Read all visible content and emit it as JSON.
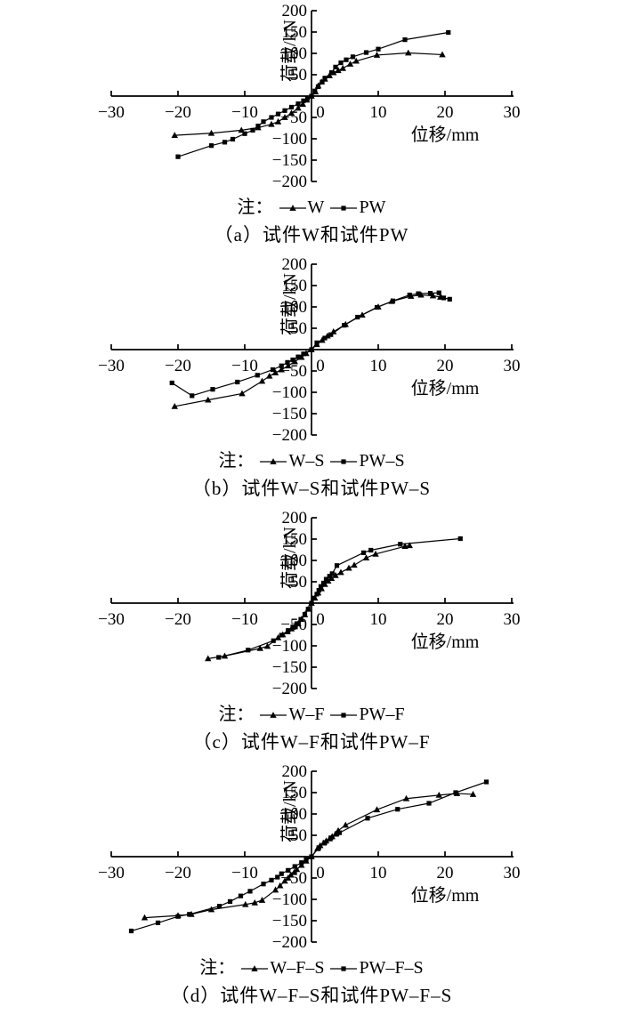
{
  "page": {
    "background": "#ffffff",
    "ink": "#000000"
  },
  "chart_data": [
    {
      "id": "a",
      "type": "line",
      "title": "（a）试件W和试件PW",
      "caption": "（a）试件W和试件PW",
      "legend_prefix": "注：",
      "xlabel": "位移/mm",
      "ylabel": "荷载/kN",
      "xlim": [
        -30,
        30
      ],
      "ylim": [
        -200,
        200
      ],
      "xticks": [
        -30,
        -20,
        -10,
        0,
        10,
        20,
        30
      ],
      "yticks": [
        -200,
        -150,
        -100,
        -50,
        50,
        100,
        150,
        200
      ],
      "grid": false,
      "legend_position": "bottom",
      "series": [
        {
          "name": "W",
          "marker": "triangle",
          "points": [
            [
              -20.5,
              -92
            ],
            [
              -15,
              -87
            ],
            [
              -10.5,
              -80
            ],
            [
              -8,
              -74
            ],
            [
              -6,
              -66
            ],
            [
              -5,
              -60
            ],
            [
              -4,
              -50
            ],
            [
              -3,
              -40
            ],
            [
              -2,
              -28
            ],
            [
              -1.3,
              -19
            ],
            [
              -0.7,
              -9
            ],
            [
              0,
              0
            ],
            [
              0.6,
              10
            ],
            [
              1,
              24
            ],
            [
              1.5,
              33
            ],
            [
              2,
              40
            ],
            [
              2.7,
              48
            ],
            [
              3.3,
              55
            ],
            [
              4,
              60
            ],
            [
              4.7,
              65
            ],
            [
              5.8,
              75
            ],
            [
              6.7,
              82
            ],
            [
              9.8,
              96
            ],
            [
              14.5,
              101
            ],
            [
              19.6,
              97
            ]
          ]
        },
        {
          "name": "PW",
          "marker": "square",
          "points": [
            [
              -20,
              -142
            ],
            [
              -15,
              -116
            ],
            [
              -13,
              -108
            ],
            [
              -11.8,
              -101
            ],
            [
              -10,
              -88
            ],
            [
              -8.8,
              -80
            ],
            [
              -8,
              -70
            ],
            [
              -7.2,
              -60
            ],
            [
              -6,
              -50
            ],
            [
              -5,
              -42
            ],
            [
              -4,
              -34
            ],
            [
              -3,
              -26
            ],
            [
              -2,
              -18
            ],
            [
              -1.2,
              -11
            ],
            [
              -0.6,
              -5
            ],
            [
              0,
              0
            ],
            [
              0.5,
              12
            ],
            [
              1,
              22
            ],
            [
              1.6,
              33
            ],
            [
              2,
              42
            ],
            [
              3,
              55
            ],
            [
              3.6,
              68
            ],
            [
              4.4,
              78
            ],
            [
              5.2,
              85
            ],
            [
              6.2,
              92
            ],
            [
              8.2,
              102
            ],
            [
              10,
              110
            ],
            [
              14,
              132
            ],
            [
              20.5,
              149
            ]
          ]
        }
      ]
    },
    {
      "id": "b",
      "type": "line",
      "title": "（b）试件W–S和试件PW–S",
      "caption": "（b）试件W–S和试件PW–S",
      "legend_prefix": "注：",
      "xlabel": "位移/mm",
      "ylabel": "荷载/kN",
      "xlim": [
        -30,
        30
      ],
      "ylim": [
        -200,
        200
      ],
      "xticks": [
        -30,
        -20,
        -10,
        0,
        10,
        20,
        30
      ],
      "yticks": [
        -200,
        -150,
        -100,
        -50,
        50,
        100,
        150,
        200
      ],
      "grid": false,
      "legend_position": "bottom",
      "series": [
        {
          "name": "W–S",
          "marker": "triangle",
          "points": [
            [
              -20.5,
              -133
            ],
            [
              -15.5,
              -118
            ],
            [
              -10.4,
              -103
            ],
            [
              -7.4,
              -74
            ],
            [
              -6.3,
              -62
            ],
            [
              -5.4,
              -54
            ],
            [
              -4.5,
              -47
            ],
            [
              -3.5,
              -38
            ],
            [
              -2.5,
              -28
            ],
            [
              -1.5,
              -18
            ],
            [
              -0.8,
              -9
            ],
            [
              0,
              0
            ],
            [
              0.8,
              12
            ],
            [
              1.6,
              22
            ],
            [
              2.4,
              32
            ],
            [
              3.3,
              42
            ],
            [
              5.1,
              59
            ],
            [
              7.6,
              81
            ],
            [
              10,
              100
            ],
            [
              12,
              113
            ],
            [
              14.9,
              125
            ],
            [
              16.4,
              128
            ],
            [
              18.2,
              126
            ],
            [
              19.3,
              123
            ]
          ]
        },
        {
          "name": "PW–S",
          "marker": "square",
          "points": [
            [
              -20.9,
              -78
            ],
            [
              -17.9,
              -108
            ],
            [
              -14.8,
              -93
            ],
            [
              -11.1,
              -76
            ],
            [
              -8.1,
              -60
            ],
            [
              -5.8,
              -47
            ],
            [
              -4.5,
              -38
            ],
            [
              -3.6,
              -30
            ],
            [
              -2.8,
              -24
            ],
            [
              -2,
              -17
            ],
            [
              -1.2,
              -10
            ],
            [
              0,
              0
            ],
            [
              0.8,
              16
            ],
            [
              2,
              27
            ],
            [
              2.9,
              35
            ],
            [
              4.9,
              57
            ],
            [
              6.9,
              76
            ],
            [
              9.8,
              99
            ],
            [
              12.2,
              114
            ],
            [
              14.7,
              128
            ],
            [
              16,
              131
            ],
            [
              17.8,
              132
            ],
            [
              19.1,
              133
            ],
            [
              19.8,
              121
            ],
            [
              20.7,
              118
            ]
          ]
        }
      ]
    },
    {
      "id": "c",
      "type": "line",
      "title": "（c）试件W–F和试件PW–F",
      "caption": "（c）试件W–F和试件PW–F",
      "legend_prefix": "注：",
      "xlabel": "位移/mm",
      "ylabel": "荷载/kN",
      "xlim": [
        -30,
        30
      ],
      "ylim": [
        -200,
        200
      ],
      "xticks": [
        -30,
        -20,
        -10,
        0,
        10,
        20,
        30
      ],
      "yticks": [
        -200,
        -150,
        -100,
        -50,
        50,
        100,
        150,
        200
      ],
      "grid": false,
      "legend_position": "bottom",
      "series": [
        {
          "name": "W–F",
          "marker": "triangle",
          "points": [
            [
              -15.5,
              -130
            ],
            [
              -13,
              -124
            ],
            [
              -7.7,
              -106
            ],
            [
              -6.6,
              -101
            ],
            [
              -5,
              -81
            ],
            [
              -4.3,
              -74
            ],
            [
              -3.6,
              -67
            ],
            [
              -3,
              -60
            ],
            [
              -2.5,
              -55
            ],
            [
              -2,
              -48
            ],
            [
              -1.5,
              -38
            ],
            [
              -1,
              -27
            ],
            [
              -0.5,
              -14
            ],
            [
              0,
              0
            ],
            [
              0.5,
              12
            ],
            [
              1,
              24
            ],
            [
              1.5,
              34
            ],
            [
              2,
              44
            ],
            [
              2.5,
              52
            ],
            [
              3,
              58
            ],
            [
              3.6,
              65
            ],
            [
              4.4,
              72
            ],
            [
              5.6,
              82
            ],
            [
              6.4,
              89
            ],
            [
              8.2,
              106
            ],
            [
              9.6,
              115
            ],
            [
              14,
              133
            ],
            [
              14.7,
              135
            ]
          ]
        },
        {
          "name": "PW–F",
          "marker": "square",
          "points": [
            [
              -13.9,
              -127
            ],
            [
              -9.5,
              -110
            ],
            [
              -5.7,
              -88
            ],
            [
              -4.5,
              -75
            ],
            [
              -3.5,
              -64
            ],
            [
              -2.8,
              -56
            ],
            [
              -2.2,
              -48
            ],
            [
              -1.6,
              -38
            ],
            [
              -1,
              -26
            ],
            [
              -0.5,
              -14
            ],
            [
              0,
              0
            ],
            [
              0.4,
              12
            ],
            [
              0.8,
              21
            ],
            [
              1.1,
              30
            ],
            [
              1.4,
              39
            ],
            [
              1.8,
              47
            ],
            [
              2.2,
              56
            ],
            [
              2.7,
              63
            ],
            [
              3.1,
              69
            ],
            [
              3.8,
              88
            ],
            [
              7.8,
              118
            ],
            [
              8.9,
              124
            ],
            [
              13.3,
              138
            ],
            [
              22.3,
              151
            ]
          ]
        }
      ]
    },
    {
      "id": "d",
      "type": "line",
      "title": "（d）试件W–F–S和试件PW–F–S",
      "caption": "（d）试件W–F–S和试件PW–F–S",
      "legend_prefix": "注：",
      "xlabel": "位移/mm",
      "ylabel": "荷载/kN",
      "xlim": [
        -30,
        30
      ],
      "ylim": [
        -200,
        200
      ],
      "xticks": [
        -30,
        -20,
        -10,
        0,
        10,
        20,
        30
      ],
      "yticks": [
        -200,
        -150,
        -100,
        -50,
        50,
        100,
        150,
        200
      ],
      "grid": false,
      "legend_position": "bottom",
      "series": [
        {
          "name": "W–F–S",
          "marker": "triangle",
          "points": [
            [
              -25,
              -143
            ],
            [
              -20,
              -138
            ],
            [
              -18,
              -135
            ],
            [
              -15,
              -124
            ],
            [
              -9.9,
              -112
            ],
            [
              -8.5,
              -108
            ],
            [
              -7.4,
              -102
            ],
            [
              -5.4,
              -78
            ],
            [
              -4.7,
              -68
            ],
            [
              -4,
              -57
            ],
            [
              -3.5,
              -50
            ],
            [
              -3.1,
              -43
            ],
            [
              -2.6,
              -37
            ],
            [
              -2.2,
              -30
            ],
            [
              -1.5,
              -20
            ],
            [
              -0.8,
              -10
            ],
            [
              0,
              0
            ],
            [
              0.9,
              19
            ],
            [
              1.3,
              26
            ],
            [
              1.8,
              32
            ],
            [
              2.2,
              37
            ],
            [
              2.7,
              42
            ],
            [
              3.1,
              47
            ],
            [
              3.6,
              53
            ],
            [
              4,
              61
            ],
            [
              5.1,
              74
            ],
            [
              9.8,
              110
            ],
            [
              14.2,
              136
            ],
            [
              19.1,
              144
            ],
            [
              21.8,
              148
            ],
            [
              24.2,
              146
            ]
          ]
        },
        {
          "name": "PW–F–S",
          "marker": "square",
          "points": [
            [
              -27,
              -174
            ],
            [
              -23,
              -155
            ],
            [
              -20,
              -140
            ],
            [
              -18.3,
              -135
            ],
            [
              -13.8,
              -116
            ],
            [
              -12.2,
              -105
            ],
            [
              -10.6,
              -92
            ],
            [
              -9.2,
              -81
            ],
            [
              -7.2,
              -64
            ],
            [
              -6,
              -55
            ],
            [
              -5.1,
              -48
            ],
            [
              -4.5,
              -40
            ],
            [
              -3.5,
              -32
            ],
            [
              -2.5,
              -23
            ],
            [
              -1.5,
              -14
            ],
            [
              -0.8,
              -7
            ],
            [
              0,
              0
            ],
            [
              1.1,
              21
            ],
            [
              2,
              33
            ],
            [
              2.9,
              44
            ],
            [
              3.8,
              53
            ],
            [
              4.2,
              56
            ],
            [
              8.4,
              90
            ],
            [
              12.9,
              111
            ],
            [
              17.6,
              125
            ],
            [
              21.6,
              150
            ],
            [
              26.2,
              175
            ]
          ]
        }
      ]
    }
  ]
}
